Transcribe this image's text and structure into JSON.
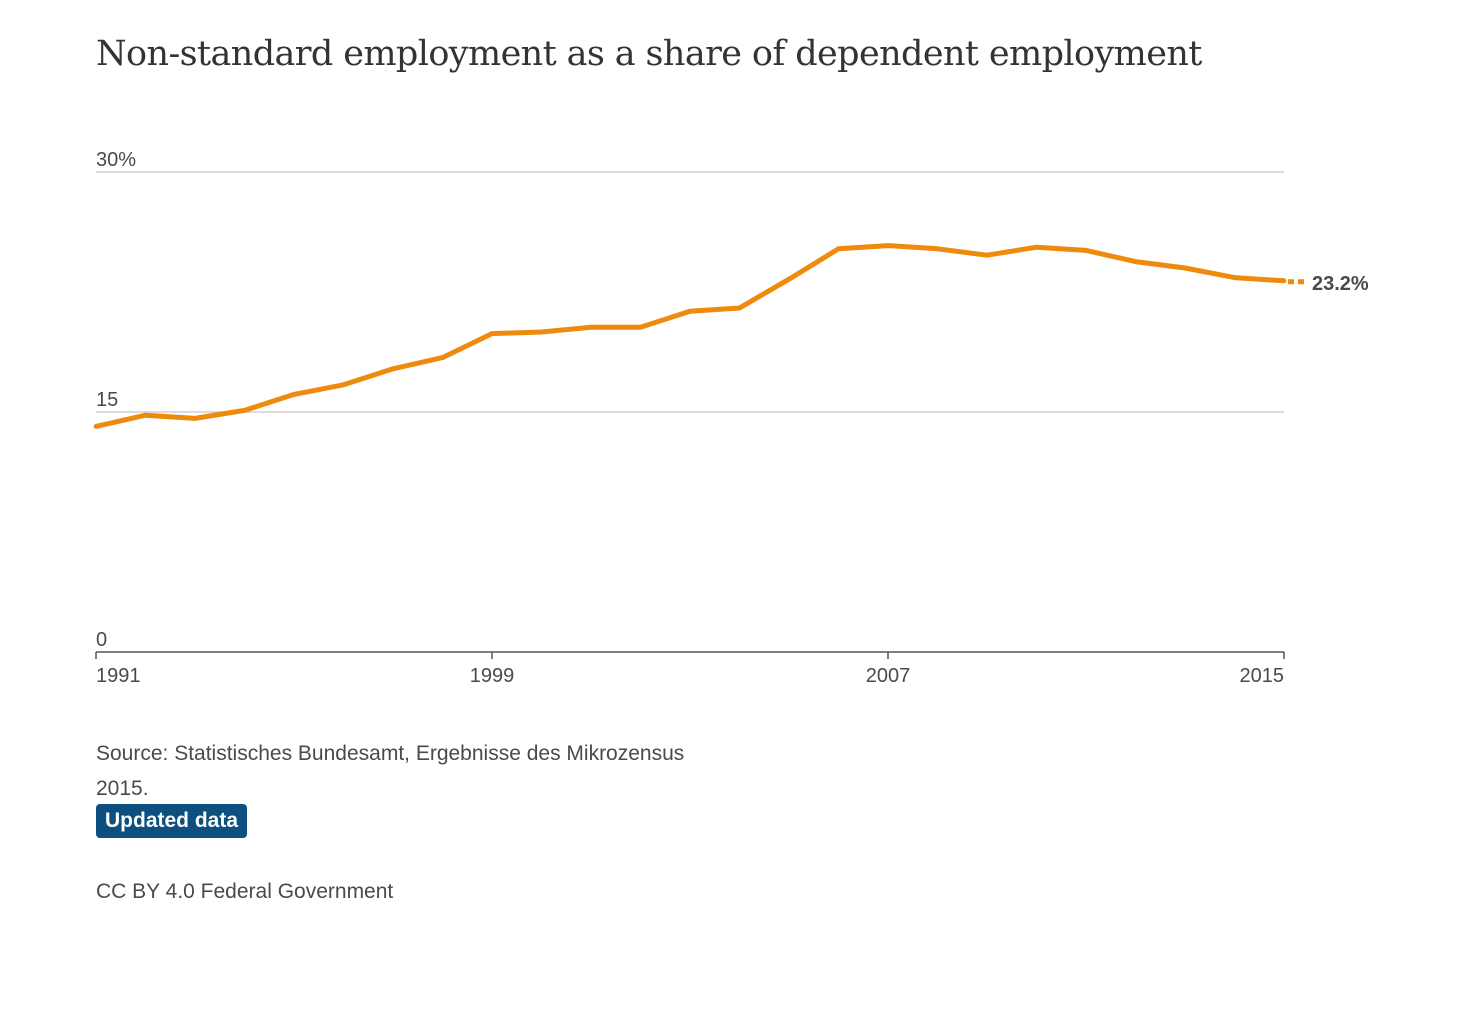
{
  "chart_data": {
    "type": "line",
    "title": "Non-standard employment as a share of dependent employment",
    "x": [
      1991,
      1992,
      1993,
      1994,
      1995,
      1996,
      1997,
      1998,
      1999,
      2000,
      2001,
      2002,
      2003,
      2004,
      2005,
      2006,
      2007,
      2008,
      2009,
      2010,
      2011,
      2012,
      2013,
      2014,
      2015
    ],
    "series": [
      {
        "values": [
          14.1,
          14.8,
          14.6,
          15.1,
          16.1,
          16.7,
          17.7,
          18.4,
          19.9,
          20.0,
          20.3,
          20.3,
          21.3,
          21.5,
          23.3,
          25.2,
          25.4,
          25.2,
          24.8,
          25.3,
          25.1,
          24.4,
          24.0,
          23.4,
          23.2
        ],
        "color": "#ee8a0c"
      }
    ],
    "ylim": [
      0,
      30
    ],
    "xlim": [
      1991,
      2015
    ],
    "y_ticks": [
      0,
      15,
      30
    ],
    "y_tick_labels": [
      "0",
      "15",
      "30%"
    ],
    "x_ticks": [
      1991,
      1999,
      2007,
      2015
    ],
    "x_tick_labels": [
      "1991",
      "1999",
      "2007",
      "2015"
    ],
    "end_label": "23.2%",
    "grid": true,
    "xlabel": "",
    "ylabel": ""
  },
  "footer": {
    "source": "Source: Statistisches Bundesamt, Ergebnisse des Mikrozensus 2015.",
    "badge": "Updated data",
    "license": "CC BY 4.0 Federal Government"
  },
  "colors": {
    "line": "#ee8a0c",
    "grid": "#d0d0d0",
    "axis": "#555555",
    "badge_bg": "#0d4f7f",
    "text": "#4a4a4a"
  }
}
